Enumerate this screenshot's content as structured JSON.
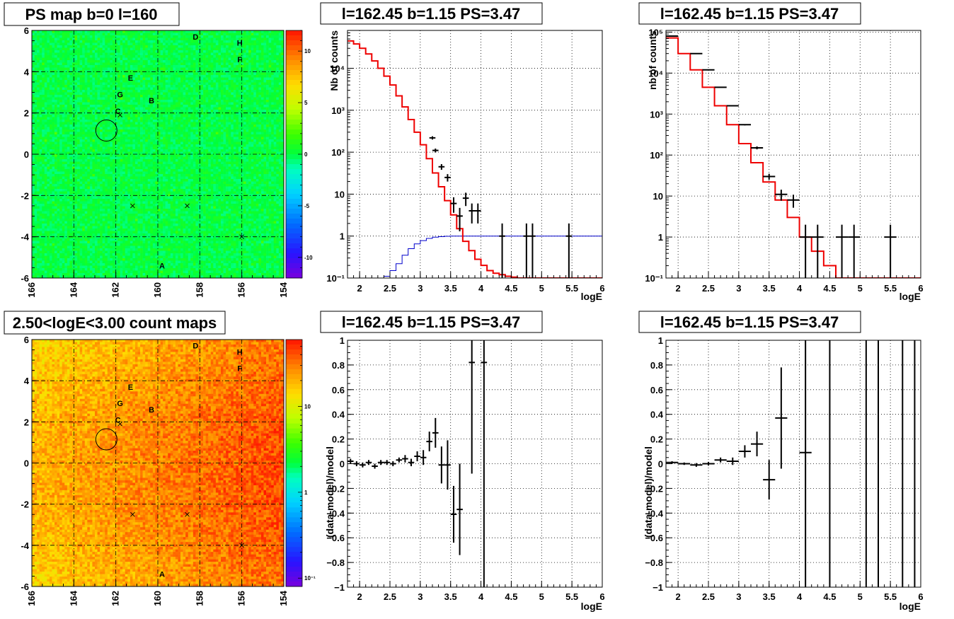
{
  "chart_data": [
    {
      "id": "psmap",
      "type": "heatmap",
      "title": "PS map b=0 l=160",
      "x_ticks": [
        "166",
        "164",
        "162",
        "160",
        "158",
        "156",
        "154"
      ],
      "y_ticks": [
        "6",
        "4",
        "2",
        "0",
        "-2",
        "-4",
        "-6"
      ],
      "xlim": [
        166,
        154
      ],
      "ylim": [
        -6,
        6
      ],
      "z_ticks": [
        "10",
        "5",
        "0",
        "-5",
        "-10"
      ],
      "zlim": [
        -12,
        12
      ],
      "grid": true,
      "markers": [
        {
          "label": "A",
          "l": 159.8,
          "b": -5.4
        },
        {
          "label": "B",
          "l": 160.3,
          "b": 2.6
        },
        {
          "label": "C",
          "l": 161.9,
          "b": 2.1
        },
        {
          "label": "D",
          "l": 158.2,
          "b": 5.7
        },
        {
          "label": "E",
          "l": 161.3,
          "b": 3.7
        },
        {
          "label": "F",
          "l": 156.1,
          "b": 4.6
        },
        {
          "label": "G",
          "l": 161.8,
          "b": 2.9
        },
        {
          "label": "H",
          "l": 156.1,
          "b": 5.4
        }
      ],
      "crosses": [
        [
          161.8,
          1.9
        ],
        [
          161.2,
          -2.5
        ],
        [
          158.6,
          -2.5
        ],
        [
          156.0,
          -4.0
        ]
      ],
      "circle": {
        "l": 162.45,
        "b": 1.15
      }
    },
    {
      "id": "countmap",
      "type": "heatmap",
      "title": "2.50<logE<3.00 count maps",
      "x_ticks": [
        "166",
        "164",
        "162",
        "160",
        "158",
        "156",
        "154"
      ],
      "y_ticks": [
        "6",
        "4",
        "2",
        "0",
        "-2",
        "-4",
        "-6"
      ],
      "xlim": [
        166,
        154
      ],
      "ylim": [
        -6,
        6
      ],
      "z_ticks": [
        "10",
        "1",
        "10⁻¹"
      ],
      "z_scale": "log",
      "grid": true,
      "markers": [
        {
          "label": "A",
          "l": 159.8,
          "b": -5.4
        },
        {
          "label": "B",
          "l": 160.3,
          "b": 2.6
        },
        {
          "label": "C",
          "l": 161.9,
          "b": 2.1
        },
        {
          "label": "D",
          "l": 158.2,
          "b": 5.7
        },
        {
          "label": "E",
          "l": 161.3,
          "b": 3.7
        },
        {
          "label": "F",
          "l": 156.1,
          "b": 4.6
        },
        {
          "label": "G",
          "l": 161.8,
          "b": 2.9
        },
        {
          "label": "H",
          "l": 156.1,
          "b": 5.4
        }
      ],
      "crosses": [
        [
          161.8,
          1.9
        ],
        [
          161.2,
          -2.5
        ],
        [
          158.6,
          -2.5
        ],
        [
          156.0,
          -4.0
        ]
      ],
      "circle": {
        "l": 162.45,
        "b": 1.15
      }
    },
    {
      "id": "spec1",
      "type": "line",
      "title": "l=162.45 b=1.15 PS=3.47",
      "xlabel": "logE",
      "ylabel": "Nb of counts",
      "xlim": [
        1.8,
        6
      ],
      "ylim": [
        0.1,
        80000
      ],
      "yscale": "log",
      "x_ticks": [
        "2",
        "2.5",
        "3",
        "3.5",
        "4",
        "4.5",
        "5",
        "5.5",
        "6"
      ],
      "y_ticks": [
        "10⁴",
        "10³",
        "10²",
        "10",
        "1",
        "10⁻¹"
      ],
      "model_edges": [
        1.8,
        1.9,
        2.0,
        2.1,
        2.2,
        2.3,
        2.4,
        2.5,
        2.6,
        2.7,
        2.8,
        2.9,
        3.0,
        3.1,
        3.2,
        3.3,
        3.4,
        3.5,
        3.6,
        3.7,
        3.8,
        3.9,
        4.0,
        4.1,
        4.2,
        4.3,
        4.4,
        4.5,
        4.6,
        4.7,
        4.8,
        6.0
      ],
      "model_values": [
        45000,
        38000,
        30000,
        22000,
        15000,
        10000,
        6500,
        4000,
        2200,
        1200,
        600,
        300,
        150,
        70,
        32,
        15,
        7,
        3.2,
        1.5,
        0.75,
        0.45,
        0.28,
        0.2,
        0.15,
        0.13,
        0.12,
        0.11,
        0.105,
        0.1,
        0.1,
        0.1
      ],
      "blue_edges": [
        2.3,
        2.4,
        2.5,
        2.6,
        2.7,
        2.8,
        2.9,
        3.0,
        3.1,
        3.2,
        3.3,
        3.4,
        3.5,
        6.0
      ],
      "blue_values": [
        0.1,
        0.11,
        0.15,
        0.22,
        0.35,
        0.5,
        0.65,
        0.78,
        0.88,
        0.94,
        0.97,
        0.99,
        1.0
      ],
      "data_points": [
        {
          "x": 3.2,
          "y": 220,
          "dx": 0.05,
          "lo": 200,
          "hi": 240
        },
        {
          "x": 3.25,
          "y": 110,
          "dx": 0.05,
          "lo": 98,
          "hi": 122
        },
        {
          "x": 3.35,
          "y": 45,
          "dx": 0.05,
          "lo": 38,
          "hi": 52
        },
        {
          "x": 3.45,
          "y": 25,
          "dx": 0.05,
          "lo": 20,
          "hi": 30
        },
        {
          "x": 3.55,
          "y": 6,
          "dx": 0.05,
          "lo": 3.6,
          "hi": 8.4
        },
        {
          "x": 3.65,
          "y": 3,
          "dx": 0.05,
          "lo": 1.3,
          "hi": 4.7
        },
        {
          "x": 3.75,
          "y": 8,
          "dx": 0.05,
          "lo": 5.2,
          "hi": 10.8
        },
        {
          "x": 3.85,
          "y": 4,
          "dx": 0.05,
          "lo": 2,
          "hi": 6
        },
        {
          "x": 3.95,
          "y": 4,
          "dx": 0.05,
          "lo": 2,
          "hi": 6
        },
        {
          "x": 4.35,
          "y": 1,
          "dx": 0.05,
          "lo": 0.1,
          "hi": 2
        },
        {
          "x": 4.75,
          "y": 1,
          "dx": 0.05,
          "lo": 0.1,
          "hi": 2
        },
        {
          "x": 4.85,
          "y": 1,
          "dx": 0.05,
          "lo": 0.1,
          "hi": 2
        },
        {
          "x": 5.45,
          "y": 1,
          "dx": 0.05,
          "lo": 0.1,
          "hi": 2
        }
      ],
      "grid": true
    },
    {
      "id": "spec2",
      "type": "line",
      "title": "l=162.45 b=1.15 PS=3.47",
      "xlabel": "logE",
      "ylabel": "nb of counts",
      "xlim": [
        1.8,
        6
      ],
      "ylim": [
        0.1,
        110000
      ],
      "yscale": "log",
      "x_ticks": [
        "2",
        "2.5",
        "3",
        "3.5",
        "4",
        "4.5",
        "5",
        "5.5",
        "6"
      ],
      "y_ticks": [
        "10⁵",
        "10⁴",
        "10³",
        "10²",
        "10",
        "1",
        "10⁻¹"
      ],
      "model_edges": [
        1.8,
        2.0,
        2.2,
        2.4,
        2.6,
        2.8,
        3.0,
        3.2,
        3.4,
        3.6,
        3.8,
        4.0,
        4.2,
        4.4,
        4.6,
        6.0
      ],
      "model_values": [
        72000,
        30000,
        12000,
        4500,
        1600,
        550,
        190,
        65,
        22,
        8,
        3,
        1,
        0.45,
        0.2,
        0.1
      ],
      "data_points": [
        {
          "x": 1.9,
          "y": 80000,
          "dx": 0.1,
          "lo": 79000,
          "hi": 81000
        },
        {
          "x": 2.3,
          "y": 30000,
          "dx": 0.1,
          "lo": 29800,
          "hi": 30200
        },
        {
          "x": 2.5,
          "y": 12000,
          "dx": 0.1,
          "lo": 11900,
          "hi": 12100
        },
        {
          "x": 2.7,
          "y": 4500,
          "dx": 0.1,
          "lo": 4430,
          "hi": 4570
        },
        {
          "x": 2.9,
          "y": 1600,
          "dx": 0.1,
          "lo": 1560,
          "hi": 1640
        },
        {
          "x": 3.1,
          "y": 550,
          "dx": 0.1,
          "lo": 527,
          "hi": 573
        },
        {
          "x": 3.3,
          "y": 150,
          "dx": 0.1,
          "lo": 138,
          "hi": 162
        },
        {
          "x": 3.5,
          "y": 30,
          "dx": 0.1,
          "lo": 25,
          "hi": 35
        },
        {
          "x": 3.7,
          "y": 11,
          "dx": 0.1,
          "lo": 7.7,
          "hi": 14.3
        },
        {
          "x": 3.9,
          "y": 8,
          "dx": 0.1,
          "lo": 5.2,
          "hi": 10.8
        },
        {
          "x": 4.1,
          "y": 1,
          "dx": 0.1,
          "lo": 0.1,
          "hi": 2
        },
        {
          "x": 4.3,
          "y": 1,
          "dx": 0.1,
          "lo": 0.1,
          "hi": 2
        },
        {
          "x": 4.7,
          "y": 1,
          "dx": 0.1,
          "lo": 0.1,
          "hi": 2
        },
        {
          "x": 4.9,
          "y": 1,
          "dx": 0.1,
          "lo": 0.1,
          "hi": 2
        },
        {
          "x": 5.5,
          "y": 1,
          "dx": 0.1,
          "lo": 0.1,
          "hi": 2
        }
      ],
      "grid": true
    },
    {
      "id": "res1",
      "type": "scatter",
      "title": "l=162.45 b=1.15 PS=3.47",
      "xlabel": "logE",
      "ylabel": "(data-model)/model",
      "xlim": [
        1.8,
        6
      ],
      "ylim": [
        -1,
        1
      ],
      "x_ticks": [
        "2",
        "2.5",
        "3",
        "3.5",
        "4",
        "4.5",
        "5",
        "5.5",
        "6"
      ],
      "y_ticks": [
        "1",
        "0.8",
        "0.6",
        "0.4",
        "0.2",
        "0",
        "−0.2",
        "−0.4",
        "−0.6",
        "−0.8",
        "−1"
      ],
      "points": [
        {
          "x": 1.85,
          "y": 0.02,
          "dx": 0.05,
          "err": 0.02
        },
        {
          "x": 1.95,
          "y": 0.0,
          "dx": 0.05,
          "err": 0.02
        },
        {
          "x": 2.05,
          "y": -0.01,
          "dx": 0.05,
          "err": 0.02
        },
        {
          "x": 2.15,
          "y": 0.01,
          "dx": 0.05,
          "err": 0.02
        },
        {
          "x": 2.25,
          "y": -0.02,
          "dx": 0.05,
          "err": 0.02
        },
        {
          "x": 2.35,
          "y": 0.01,
          "dx": 0.05,
          "err": 0.02
        },
        {
          "x": 2.45,
          "y": 0.01,
          "dx": 0.05,
          "err": 0.02
        },
        {
          "x": 2.55,
          "y": 0.0,
          "dx": 0.05,
          "err": 0.02
        },
        {
          "x": 2.65,
          "y": 0.03,
          "dx": 0.05,
          "err": 0.02
        },
        {
          "x": 2.75,
          "y": 0.04,
          "dx": 0.05,
          "err": 0.03
        },
        {
          "x": 2.85,
          "y": 0.01,
          "dx": 0.05,
          "err": 0.03
        },
        {
          "x": 2.95,
          "y": 0.06,
          "dx": 0.05,
          "err": 0.04
        },
        {
          "x": 3.05,
          "y": 0.05,
          "dx": 0.05,
          "err": 0.06
        },
        {
          "x": 3.15,
          "y": 0.18,
          "dx": 0.05,
          "err": 0.08
        },
        {
          "x": 3.25,
          "y": 0.25,
          "dx": 0.05,
          "err": 0.12
        },
        {
          "x": 3.35,
          "y": -0.01,
          "dx": 0.05,
          "err": 0.15
        },
        {
          "x": 3.45,
          "y": -0.01,
          "dx": 0.05,
          "err": 0.2
        },
        {
          "x": 3.55,
          "y": -0.41,
          "dx": 0.05,
          "err": 0.23
        },
        {
          "x": 3.65,
          "y": -0.37,
          "dx": 0.05,
          "err": 0.37
        },
        {
          "x": 3.85,
          "y": 0.82,
          "dx": 0.05,
          "err": 0.9
        },
        {
          "x": 4.05,
          "y": 0.82,
          "dx": 0.05,
          "err": 1.9
        }
      ],
      "grid": true
    },
    {
      "id": "res2",
      "type": "scatter",
      "title": "l=162.45 b=1.15 PS=3.47",
      "xlabel": "logE",
      "ylabel": "(data-model)/model",
      "xlim": [
        1.8,
        6
      ],
      "ylim": [
        -1,
        1
      ],
      "x_ticks": [
        "2",
        "2.5",
        "3",
        "3.5",
        "4",
        "4.5",
        "5",
        "5.5",
        "6"
      ],
      "y_ticks": [
        "1",
        "0.8",
        "0.6",
        "0.4",
        "0.2",
        "0",
        "−0.2",
        "−0.4",
        "−0.6",
        "−0.8",
        "−1"
      ],
      "points": [
        {
          "x": 1.9,
          "y": 0.01,
          "dx": 0.1,
          "err": 0.01
        },
        {
          "x": 2.1,
          "y": 0.0,
          "dx": 0.1,
          "err": 0.01
        },
        {
          "x": 2.3,
          "y": -0.01,
          "dx": 0.1,
          "err": 0.015
        },
        {
          "x": 2.5,
          "y": 0.0,
          "dx": 0.1,
          "err": 0.015
        },
        {
          "x": 2.7,
          "y": 0.03,
          "dx": 0.1,
          "err": 0.02
        },
        {
          "x": 2.9,
          "y": 0.02,
          "dx": 0.1,
          "err": 0.03
        },
        {
          "x": 3.1,
          "y": 0.1,
          "dx": 0.1,
          "err": 0.05
        },
        {
          "x": 3.3,
          "y": 0.16,
          "dx": 0.1,
          "err": 0.1
        },
        {
          "x": 3.5,
          "y": -0.13,
          "dx": 0.1,
          "err": 0.16
        },
        {
          "x": 3.7,
          "y": 0.37,
          "dx": 0.1,
          "err": 0.41
        },
        {
          "x": 4.1,
          "y": 0.09,
          "dx": 0.1,
          "err": 1.5
        },
        {
          "x": 4.5,
          "y": null,
          "dx": 0,
          "err": 2
        },
        {
          "x": 5.1,
          "y": null,
          "dx": 0,
          "err": 2
        },
        {
          "x": 5.3,
          "y": null,
          "dx": 0,
          "err": 2
        },
        {
          "x": 5.7,
          "y": null,
          "dx": 0,
          "err": 2
        },
        {
          "x": 5.9,
          "y": null,
          "dx": 0,
          "err": 2
        }
      ],
      "grid": true
    }
  ]
}
